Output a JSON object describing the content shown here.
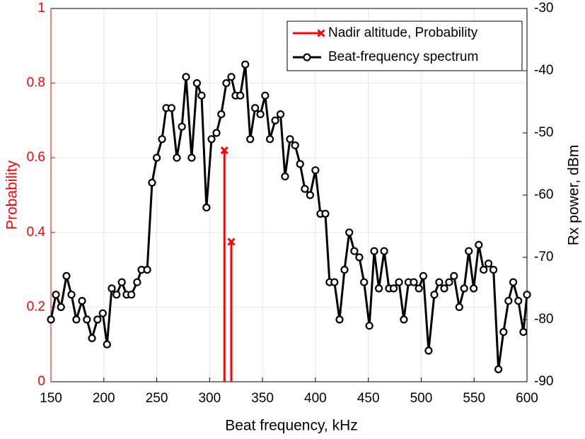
{
  "chart_data": {
    "type": "line",
    "xlabel": "Beat frequency, kHz",
    "ylabel": "Probability",
    "y2label": "Rx power, dBm",
    "xlim": [
      150,
      600
    ],
    "xticks": [
      150,
      200,
      250,
      300,
      350,
      400,
      450,
      500,
      550,
      600
    ],
    "ylim": [
      0,
      1
    ],
    "yticks": [
      0,
      0.2,
      0.4,
      0.6,
      0.8,
      1
    ],
    "y2lim": [
      -90,
      -30
    ],
    "y2ticks": [
      -90,
      -80,
      -70,
      -60,
      -50,
      -40,
      -30
    ],
    "grid": true,
    "legend": "upper right",
    "ycolor": "#ff0000",
    "series": [
      {
        "name": "Nadir altitude, Probability",
        "color": "#ff0000",
        "mode": "stem",
        "axis": "y",
        "x": [
          314,
          320.5
        ],
        "values": [
          0.62,
          0.375
        ]
      },
      {
        "name": "Beat-frequency spectrum",
        "color": "#000000",
        "mode": "line",
        "axis": "y2",
        "x": [
          150,
          154.7,
          159.5,
          164.7,
          169.4,
          174,
          179.4,
          184,
          188.8,
          194,
          199,
          203,
          207.5,
          212,
          217,
          221.5,
          226,
          231.5,
          235.6,
          241,
          245.6,
          250,
          255,
          259,
          264,
          269,
          273.8,
          277.7,
          283,
          288,
          292.4,
          297,
          301.8,
          306.5,
          311,
          315.8,
          320.5,
          324.5,
          329,
          333.7,
          338.4,
          343,
          348,
          352.5,
          357,
          362,
          367,
          371.3,
          376,
          380.8,
          385.5,
          390,
          395,
          400,
          404.7,
          409.4,
          413.4,
          418,
          422.8,
          427.5,
          432,
          436.8,
          441.5,
          446,
          451,
          455.6,
          460,
          465,
          469.6,
          474,
          479,
          483.6,
          488,
          493,
          497.8,
          502,
          507,
          512.4,
          517,
          521.8,
          526.4,
          531,
          536,
          540.6,
          545,
          549.6,
          554.4,
          559,
          563.6,
          568.3,
          573,
          577.8,
          582.5,
          587,
          591.8,
          596.6,
          600
        ],
        "values": [
          -80,
          -76,
          -78,
          -73,
          -76,
          -80,
          -77,
          -80,
          -83,
          -80,
          -79,
          -84,
          -75,
          -76,
          -74,
          -76,
          -76,
          -74,
          -72,
          -72,
          -58,
          -54,
          -51,
          -46,
          -46,
          -54,
          -49,
          -41,
          -54,
          -42,
          -44,
          -62,
          -51,
          -50,
          -47,
          -42,
          -41,
          -44,
          -44,
          -39,
          -51,
          -46,
          -47,
          -44,
          -51,
          -48,
          -47,
          -57,
          -51,
          -52,
          -55,
          -59,
          -60,
          -56,
          -63,
          -63,
          -74,
          -74,
          -80,
          -72,
          -66,
          -69,
          -70,
          -74,
          -81,
          -69,
          -75,
          -69,
          -75,
          -75,
          -74,
          -80,
          -74,
          -74,
          -75,
          -73,
          -85,
          -76,
          -74,
          -75,
          -74,
          -73,
          -78,
          -75,
          -69,
          -75,
          -68,
          -72,
          -71,
          -72,
          -88,
          -82,
          -77,
          -74,
          -77,
          -82,
          -76
        ]
      }
    ]
  }
}
